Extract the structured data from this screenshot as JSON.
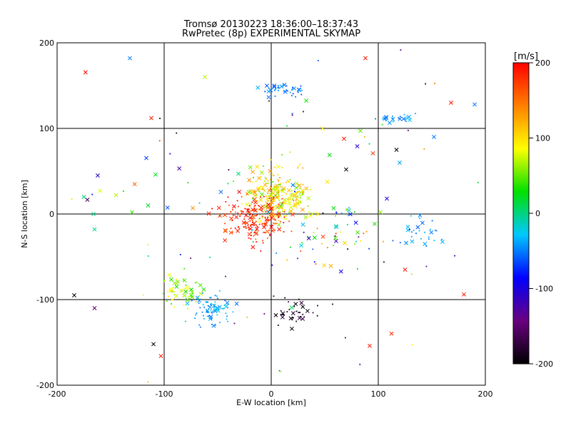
{
  "chart_data": {
    "type": "scatter",
    "title": "Tromsø 20130223 18:36:00–18:37:43",
    "subtitle": "RwPretec (8p) EXPERIMENTAL SKYMAP",
    "xlabel": "E-W location [km]",
    "ylabel": "N-S location [km]",
    "xlim": [
      -200,
      200
    ],
    "ylim": [
      -200,
      200
    ],
    "xticks": [
      "-200",
      "-100",
      "0",
      "100",
      "200"
    ],
    "yticks": [
      "-200",
      "-100",
      "0",
      "100",
      "200"
    ],
    "grid": true,
    "colorbar": {
      "label": "[m/s]",
      "range": [
        -200,
        200
      ],
      "ticks": [
        "200",
        "100",
        "0",
        "-100",
        "-200"
      ],
      "stops": [
        "#000000",
        "#6a0080",
        "#0000ff",
        "#00c8ff",
        "#00e000",
        "#ffff00",
        "#ff8000",
        "#ff0000"
      ]
    },
    "clusters": [
      {
        "cx": 5,
        "cy": 22,
        "sx": 14,
        "sy": 14,
        "n": 260,
        "vmin": 40,
        "vmax": 140
      },
      {
        "cx": -15,
        "cy": -5,
        "sx": 16,
        "sy": 14,
        "n": 190,
        "vmin": 150,
        "vmax": 210
      },
      {
        "cx": -55,
        "cy": -110,
        "sx": 9,
        "sy": 10,
        "n": 75,
        "vmin": -60,
        "vmax": -20
      },
      {
        "cx": -85,
        "cy": -90,
        "sx": 10,
        "sy": 10,
        "n": 55,
        "vmin": 30,
        "vmax": 100
      },
      {
        "cx": 10,
        "cy": 145,
        "sx": 9,
        "sy": 4,
        "n": 40,
        "vmin": -70,
        "vmax": -30
      },
      {
        "cx": 20,
        "cy": -115,
        "sx": 12,
        "sy": 8,
        "n": 40,
        "vmin": -210,
        "vmax": -150
      },
      {
        "cx": 120,
        "cy": 112,
        "sx": 9,
        "sy": 3,
        "n": 22,
        "vmin": -60,
        "vmax": -30
      },
      {
        "cx": 145,
        "cy": -20,
        "sx": 12,
        "sy": 8,
        "n": 28,
        "vmin": -60,
        "vmax": -30
      },
      {
        "cx": 60,
        "cy": -20,
        "sx": 30,
        "sy": 20,
        "n": 60,
        "vmin": -200,
        "vmax": 200
      },
      {
        "cx": 0,
        "cy": 0,
        "sx": 110,
        "sy": 95,
        "n": 90,
        "vmin": -200,
        "vmax": 200
      }
    ],
    "markers": [
      {
        "x": -132,
        "y": 182,
        "v": -50
      },
      {
        "x": 88,
        "y": 182,
        "v": 190
      },
      {
        "x": -112,
        "y": 112,
        "v": 190
      },
      {
        "x": -62,
        "y": 160,
        "v": 70
      },
      {
        "x": 168,
        "y": 130,
        "v": 190
      },
      {
        "x": 190,
        "y": 128,
        "v": -50
      },
      {
        "x": 180,
        "y": -94,
        "v": 190
      },
      {
        "x": -184,
        "y": -95,
        "v": -200
      },
      {
        "x": -165,
        "y": -110,
        "v": -150
      },
      {
        "x": -110,
        "y": -152,
        "v": -200
      },
      {
        "x": -103,
        "y": -166,
        "v": 190
      },
      {
        "x": 92,
        "y": -154,
        "v": 190
      },
      {
        "x": 125,
        "y": -65,
        "v": 190
      },
      {
        "x": -166,
        "y": 0,
        "v": 0
      },
      {
        "x": -165,
        "y": -18,
        "v": 0
      },
      {
        "x": -160,
        "y": 27,
        "v": 80
      },
      {
        "x": -175,
        "y": 20,
        "v": 0
      },
      {
        "x": -162,
        "y": 45,
        "v": -110
      },
      {
        "x": -145,
        "y": 22,
        "v": 70
      },
      {
        "x": -130,
        "y": 2,
        "v": 40
      },
      {
        "x": 117,
        "y": 75,
        "v": -200
      },
      {
        "x": 120,
        "y": 60,
        "v": -40
      },
      {
        "x": 152,
        "y": 90,
        "v": -50
      },
      {
        "x": 70,
        "y": 52,
        "v": -200
      },
      {
        "x": 68,
        "y": 88,
        "v": 190
      },
      {
        "x": 48,
        "y": 100,
        "v": 90
      },
      {
        "x": -108,
        "y": 46,
        "v": 20
      },
      {
        "x": -115,
        "y": 10,
        "v": 20
      },
      {
        "x": 108,
        "y": 18,
        "v": -100
      },
      {
        "x": 102,
        "y": 2,
        "v": 60
      }
    ]
  }
}
